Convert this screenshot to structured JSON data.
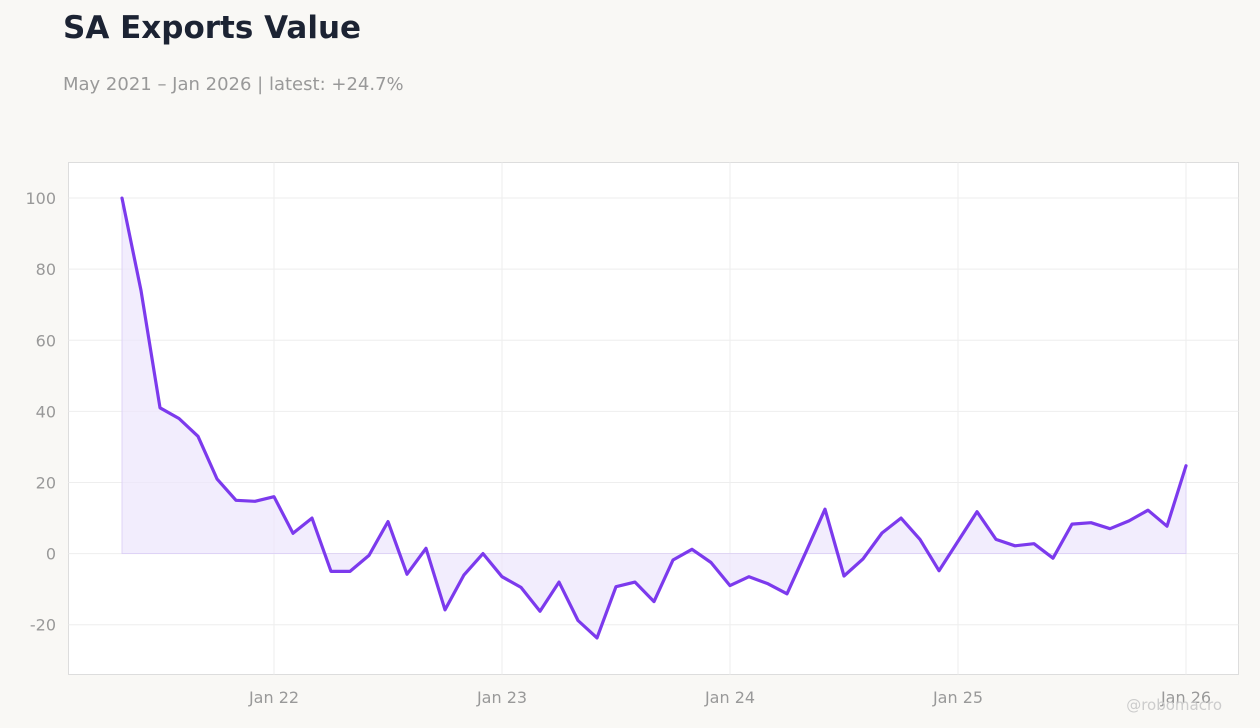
{
  "header": {
    "title": "SA Exports Value",
    "subtitle": "May 2021 – Jan 2026 | latest: +24.7%"
  },
  "credit": "@robomacro",
  "colors": {
    "line": "#7c3aed",
    "fill": "#ede5fc",
    "background": "#f9f8f5",
    "plot_background": "#ffffff",
    "grid": "#eeeeee",
    "text_muted": "#999999",
    "title": "#1c2333"
  },
  "chart_data": {
    "type": "area",
    "title": "SA Exports Value",
    "subtitle": "May 2021 – Jan 2026 | latest: +24.7%",
    "xlabel": "",
    "ylabel": "",
    "ylim": [
      -34,
      110
    ],
    "yticks": [
      100,
      80,
      60,
      40,
      20,
      0,
      -20
    ],
    "xticks": [
      {
        "label": "Jan 22",
        "month": "2022-01"
      },
      {
        "label": "Jan 23",
        "month": "2023-01"
      },
      {
        "label": "Jan 24",
        "month": "2024-01"
      },
      {
        "label": "Jan 25",
        "month": "2025-01"
      },
      {
        "label": "Jan 26",
        "month": "2026-01"
      }
    ],
    "grid": true,
    "legend": "none",
    "series": [
      {
        "x": [
          "2021-05",
          "2021-06",
          "2021-07",
          "2021-08",
          "2021-09",
          "2021-10",
          "2021-11",
          "2021-12",
          "2022-01",
          "2022-02",
          "2022-03",
          "2022-04",
          "2022-05",
          "2022-06",
          "2022-07",
          "2022-08",
          "2022-09",
          "2022-10",
          "2022-11",
          "2022-12",
          "2023-01",
          "2023-02",
          "2023-03",
          "2023-04",
          "2023-05",
          "2023-06",
          "2023-07",
          "2023-08",
          "2023-09",
          "2023-10",
          "2023-11",
          "2023-12",
          "2024-01",
          "2024-02",
          "2024-03",
          "2024-04",
          "2024-05",
          "2024-06",
          "2024-07",
          "2024-08",
          "2024-09",
          "2024-10",
          "2024-11",
          "2024-12",
          "2025-01",
          "2025-02",
          "2025-03",
          "2025-04",
          "2025-05",
          "2025-06",
          "2025-07",
          "2025-08",
          "2025-09",
          "2025-10",
          "2025-11",
          "2025-12",
          "2026-01"
        ],
        "values": [
          100,
          74,
          41,
          38,
          33,
          21,
          15,
          14.7,
          16,
          5.7,
          10,
          -5,
          -5,
          -0.5,
          9,
          -5.8,
          1.5,
          -15.8,
          -6,
          0,
          -6.5,
          -9.5,
          -16.2,
          -8,
          -18.8,
          -23.7,
          -9.3,
          -8,
          -13.5,
          -1.8,
          1.2,
          -2.5,
          -9,
          -6.5,
          -8.5,
          -11.3,
          0.5,
          12.5,
          -6.3,
          -1.5,
          5.8,
          10,
          4,
          -4.8,
          3.5,
          11.8,
          4,
          2.2,
          2.8,
          -1.3,
          8.3,
          8.7,
          7,
          9.2,
          12.2,
          7.7,
          24.7
        ]
      }
    ]
  }
}
